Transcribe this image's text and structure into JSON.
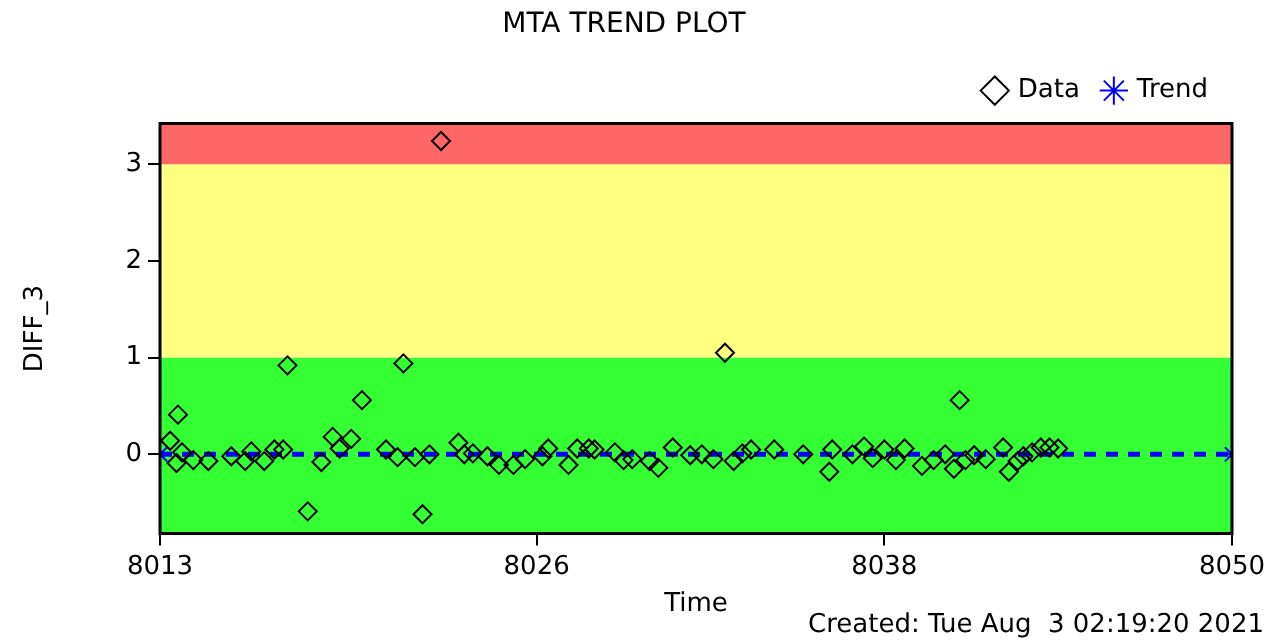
{
  "chart_data": {
    "type": "scatter",
    "title": "MTA TREND PLOT",
    "xlabel": "Time",
    "ylabel": "DIFF_3",
    "xlim": [
      8013,
      8050
    ],
    "xticks": [
      8013,
      8026,
      8038,
      8050
    ],
    "ylim": [
      -0.82,
      3.42
    ],
    "yticks": [
      0,
      1,
      2,
      3
    ],
    "grid": false,
    "legend": "top right",
    "bands": [
      {
        "axis": "y",
        "from": -0.82,
        "to": 1,
        "color": "#33ff33"
      },
      {
        "axis": "y",
        "from": 1,
        "to": 3,
        "color": "#ffff80"
      },
      {
        "axis": "y",
        "from": 3,
        "to": 3.42,
        "color": "#ff6666"
      }
    ],
    "annotations": [
      "Created: Tue Aug  3 02:19:20 2021"
    ],
    "series": [
      {
        "name": "Data",
        "type": "scatter",
        "color": "#000000",
        "marker": "diamond",
        "x": [
          8013.62,
          8013.35,
          8013.57,
          8013.76,
          8014.15,
          8014.67,
          8015.46,
          8015.94,
          8016.15,
          8016.6,
          8016.95,
          8017.25,
          8017.4,
          8018.1,
          8018.57,
          8018.96,
          8019.2,
          8019.6,
          8019.97,
          8020.8,
          8021.2,
          8021.4,
          8021.8,
          8022.06,
          8022.3,
          8022.7,
          8023.3,
          8023.5,
          8023.8,
          8024.3,
          8024.7,
          8025.2,
          8025.6,
          8026.2,
          8026.4,
          8027.1,
          8027.4,
          8027.8,
          8028,
          8028.7,
          8029,
          8029.3,
          8029.9,
          8030.2,
          8030.7,
          8031.3,
          8031.7,
          8032.1,
          8032.5,
          8032.8,
          8033.1,
          8033.4,
          8034.2,
          8035.2,
          8036.1,
          8036.2,
          8036.9,
          8037.3,
          8037.6,
          8038,
          8038.4,
          8038.7,
          8039.3,
          8039.7,
          8040.1,
          8040.4,
          8040.6,
          8040.8,
          8041.1,
          8041.5,
          8042.1,
          8042.3,
          8042.6,
          8042.8,
          8043.1,
          8043.4,
          8043.7,
          8044
        ],
        "values": [
          0.41,
          0.14,
          -0.09,
          0.02,
          -0.06,
          -0.07,
          -0.02,
          -0.07,
          0.03,
          -0.07,
          0.05,
          0.05,
          0.92,
          -0.59,
          -0.08,
          0.18,
          0.06,
          0.16,
          0.56,
          0.05,
          -0.03,
          0.94,
          -0.03,
          -0.62,
          0,
          3.24,
          0.12,
          0,
          0.01,
          -0.02,
          -0.11,
          -0.11,
          -0.05,
          -0.02,
          0.06,
          -0.11,
          0.06,
          0.06,
          0.05,
          0.02,
          -0.06,
          -0.05,
          -0.07,
          -0.14,
          0.07,
          -0.01,
          0,
          -0.05,
          1.05,
          -0.07,
          0.01,
          0.05,
          0.05,
          0,
          -0.18,
          0.05,
          0,
          0.08,
          -0.04,
          0.05,
          -0.06,
          0.06,
          -0.12,
          -0.06,
          0,
          -0.15,
          0.56,
          -0.06,
          -0.01,
          -0.05,
          0.07,
          -0.18,
          -0.07,
          -0.02,
          0.02,
          0.07,
          0.07,
          0.06
        ]
      },
      {
        "name": "Trend",
        "type": "line",
        "color": "#0000ff",
        "marker": "cross",
        "line_style": "dashed",
        "x": [
          8013,
          8050
        ],
        "values": [
          0,
          0
        ]
      }
    ]
  }
}
